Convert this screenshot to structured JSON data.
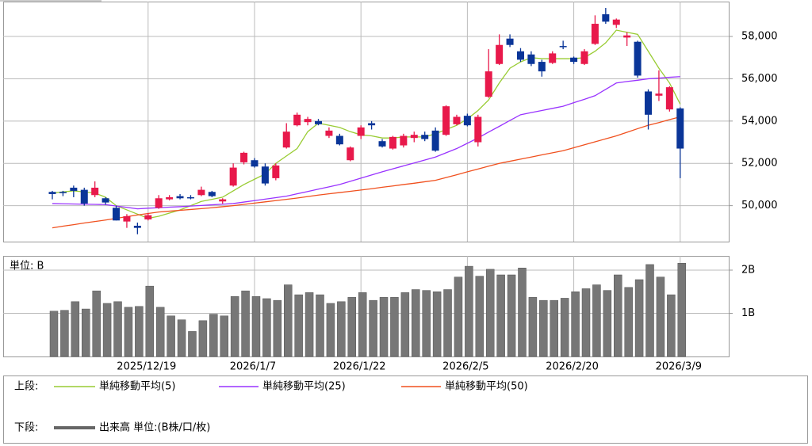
{
  "chart_data": {
    "type": "candlestick",
    "categories": [
      null,
      null,
      null,
      null,
      null,
      null,
      null,
      null,
      null,
      "2025/12/19",
      null,
      null,
      null,
      null,
      null,
      null,
      null,
      null,
      null,
      "2026/1/7",
      null,
      null,
      null,
      null,
      null,
      null,
      null,
      null,
      null,
      "2026/1/22",
      null,
      null,
      null,
      null,
      null,
      null,
      null,
      null,
      null,
      "2026/2/5",
      null,
      null,
      null,
      null,
      null,
      null,
      null,
      null,
      null,
      "2026/2/20",
      null,
      null,
      null,
      null,
      null,
      null,
      null,
      null,
      null,
      "2026/3/9"
    ],
    "open": [
      50650,
      50650,
      50850,
      50750,
      50500,
      50350,
      49900,
      49250,
      49050,
      49350,
      49900,
      50300,
      50450,
      50400,
      50500,
      50650,
      50200,
      50950,
      52050,
      52150,
      51850,
      51300,
      52750,
      53800,
      53950,
      54000,
      53300,
      53300,
      52150,
      53300,
      53900,
      53050,
      52700,
      52850,
      53200,
      53350,
      53550,
      53350,
      53850,
      54250,
      53000,
      55150,
      56700,
      57900,
      57300,
      57150,
      56800,
      56750,
      57550,
      57000,
      56700,
      57650,
      59050,
      58550,
      57950,
      57750,
      55400,
      55200,
      54550,
      54600
    ],
    "high": [
      50700,
      50700,
      50950,
      50850,
      51150,
      50400,
      50000,
      49600,
      49200,
      49650,
      50500,
      50500,
      50550,
      50500,
      50900,
      50700,
      50350,
      52000,
      52550,
      52250,
      52000,
      52000,
      53900,
      54400,
      54200,
      54100,
      53700,
      53400,
      52800,
      53800,
      54000,
      53150,
      53300,
      53400,
      53500,
      53500,
      53700,
      54750,
      54300,
      54350,
      54300,
      57400,
      58100,
      58100,
      57450,
      57300,
      56900,
      57300,
      57800,
      57050,
      57400,
      59000,
      59350,
      58850,
      58200,
      57800,
      55500,
      56400,
      55650,
      54650
    ],
    "low": [
      50300,
      50450,
      50400,
      50000,
      50400,
      50050,
      49300,
      48950,
      48650,
      49300,
      49850,
      50250,
      50300,
      50300,
      50450,
      50400,
      50100,
      50900,
      51950,
      51800,
      50950,
      51200,
      52700,
      53750,
      53800,
      53800,
      53200,
      52850,
      52100,
      53150,
      53600,
      52750,
      52650,
      52750,
      53000,
      53050,
      52550,
      53300,
      53800,
      53750,
      52800,
      55100,
      56650,
      57500,
      56800,
      56600,
      56100,
      56700,
      57400,
      56700,
      56650,
      57600,
      58600,
      58400,
      57550,
      56050,
      53600,
      54950,
      54450,
      51300
    ],
    "close": [
      50550,
      50600,
      50700,
      50100,
      50850,
      50150,
      49300,
      49500,
      48950,
      49550,
      50350,
      50400,
      50350,
      50350,
      50750,
      50450,
      50300,
      51800,
      52500,
      51850,
      51050,
      51900,
      53500,
      54300,
      54100,
      53850,
      53550,
      52900,
      52750,
      53700,
      53800,
      52800,
      53250,
      53300,
      53350,
      53150,
      52600,
      54700,
      54200,
      53800,
      54200,
      56350,
      57600,
      57600,
      56900,
      56700,
      56350,
      57200,
      57500,
      56800,
      57300,
      58600,
      58700,
      58800,
      58050,
      56150,
      54300,
      55300,
      55600,
      52700
    ],
    "up_color": "#e8194b",
    "down_color": "#0a3598",
    "ylim": [
      48300,
      59650
    ],
    "yticks": [
      {
        "value": 50000,
        "label": "50,000"
      },
      {
        "value": 52000,
        "label": "52,000"
      },
      {
        "value": 54000,
        "label": "54,000"
      },
      {
        "value": 56000,
        "label": "56,000"
      },
      {
        "value": 58000,
        "label": "58,000"
      }
    ],
    "grid": true,
    "series": [
      {
        "name": "単純移動平均(5)",
        "color": "#99cc33",
        "values": [
          50600,
          50650,
          50700,
          50650,
          50600,
          50400,
          50000,
          49800,
          49600,
          49400,
          49500,
          49650,
          49800,
          50000,
          50200,
          50300,
          50400,
          50700,
          51000,
          51250,
          51500,
          52000,
          52350,
          52700,
          53500,
          53900,
          53800,
          53700,
          53500,
          53350,
          53300,
          53200,
          53200,
          53250,
          53250,
          53250,
          53400,
          53600,
          53800,
          54100,
          54500,
          55000,
          55800,
          56500,
          56800,
          57000,
          56950,
          56950,
          56950,
          56950,
          57000,
          57300,
          57700,
          58300,
          58200,
          58100,
          57300,
          56500,
          55800,
          54800
        ]
      },
      {
        "name": "単純移動平均(25)",
        "color": "#9933ff",
        "values": [
          50100,
          50090,
          50080,
          50070,
          50060,
          50050,
          49980,
          49920,
          49850,
          49880,
          49900,
          49930,
          49950,
          49980,
          50010,
          50040,
          50070,
          50100,
          50170,
          50240,
          50310,
          50380,
          50450,
          50560,
          50670,
          50780,
          50890,
          51000,
          51150,
          51300,
          51450,
          51600,
          51740,
          51880,
          52020,
          52160,
          52300,
          52500,
          52700,
          52950,
          53200,
          53480,
          53750,
          54030,
          54300,
          54400,
          54500,
          54600,
          54700,
          54870,
          55030,
          55200,
          55500,
          55800,
          55870,
          55930,
          56000,
          56030,
          56070,
          56100
        ]
      },
      {
        "name": "単純移動平均(50)",
        "color": "#f0501e",
        "values": [
          48950,
          49030,
          49100,
          49180,
          49250,
          49320,
          49400,
          49480,
          49560,
          49630,
          49700,
          49740,
          49780,
          49820,
          49860,
          49900,
          49950,
          50000,
          50060,
          50120,
          50180,
          50240,
          50300,
          50360,
          50430,
          50500,
          50560,
          50620,
          50680,
          50740,
          50800,
          50870,
          50930,
          51000,
          51060,
          51130,
          51200,
          51330,
          51460,
          51600,
          51730,
          51870,
          52000,
          52100,
          52200,
          52300,
          52400,
          52500,
          52600,
          52740,
          52880,
          53020,
          53160,
          53300,
          53470,
          53640,
          53800,
          53930,
          54070,
          54200
        ]
      }
    ],
    "upper_label": "上段:",
    "lower_label": "下段:",
    "volume": {
      "type": "bar",
      "label": "単位: B",
      "name": "出来高 単位:(B株/口/枚)",
      "color": "#777777",
      "values": [
        1.05,
        1.07,
        1.27,
        1.1,
        1.52,
        1.23,
        1.27,
        1.14,
        1.16,
        1.63,
        1.14,
        0.94,
        0.85,
        0.58,
        0.83,
        0.98,
        0.94,
        1.39,
        1.52,
        1.39,
        1.34,
        1.3,
        1.66,
        1.43,
        1.48,
        1.43,
        1.23,
        1.27,
        1.37,
        1.48,
        1.3,
        1.37,
        1.37,
        1.48,
        1.55,
        1.53,
        1.5,
        1.55,
        1.84,
        2.09,
        1.86,
        2.02,
        1.89,
        1.89,
        2.05,
        1.37,
        1.3,
        1.3,
        1.35,
        1.5,
        1.57,
        1.66,
        1.53,
        1.89,
        1.6,
        1.78,
        2.13,
        1.84,
        1.43,
        2.16
      ],
      "ylim": [
        0,
        2.33
      ],
      "yticks": [
        {
          "value": 1,
          "label": "1B"
        },
        {
          "value": 2,
          "label": "2B"
        }
      ]
    }
  }
}
